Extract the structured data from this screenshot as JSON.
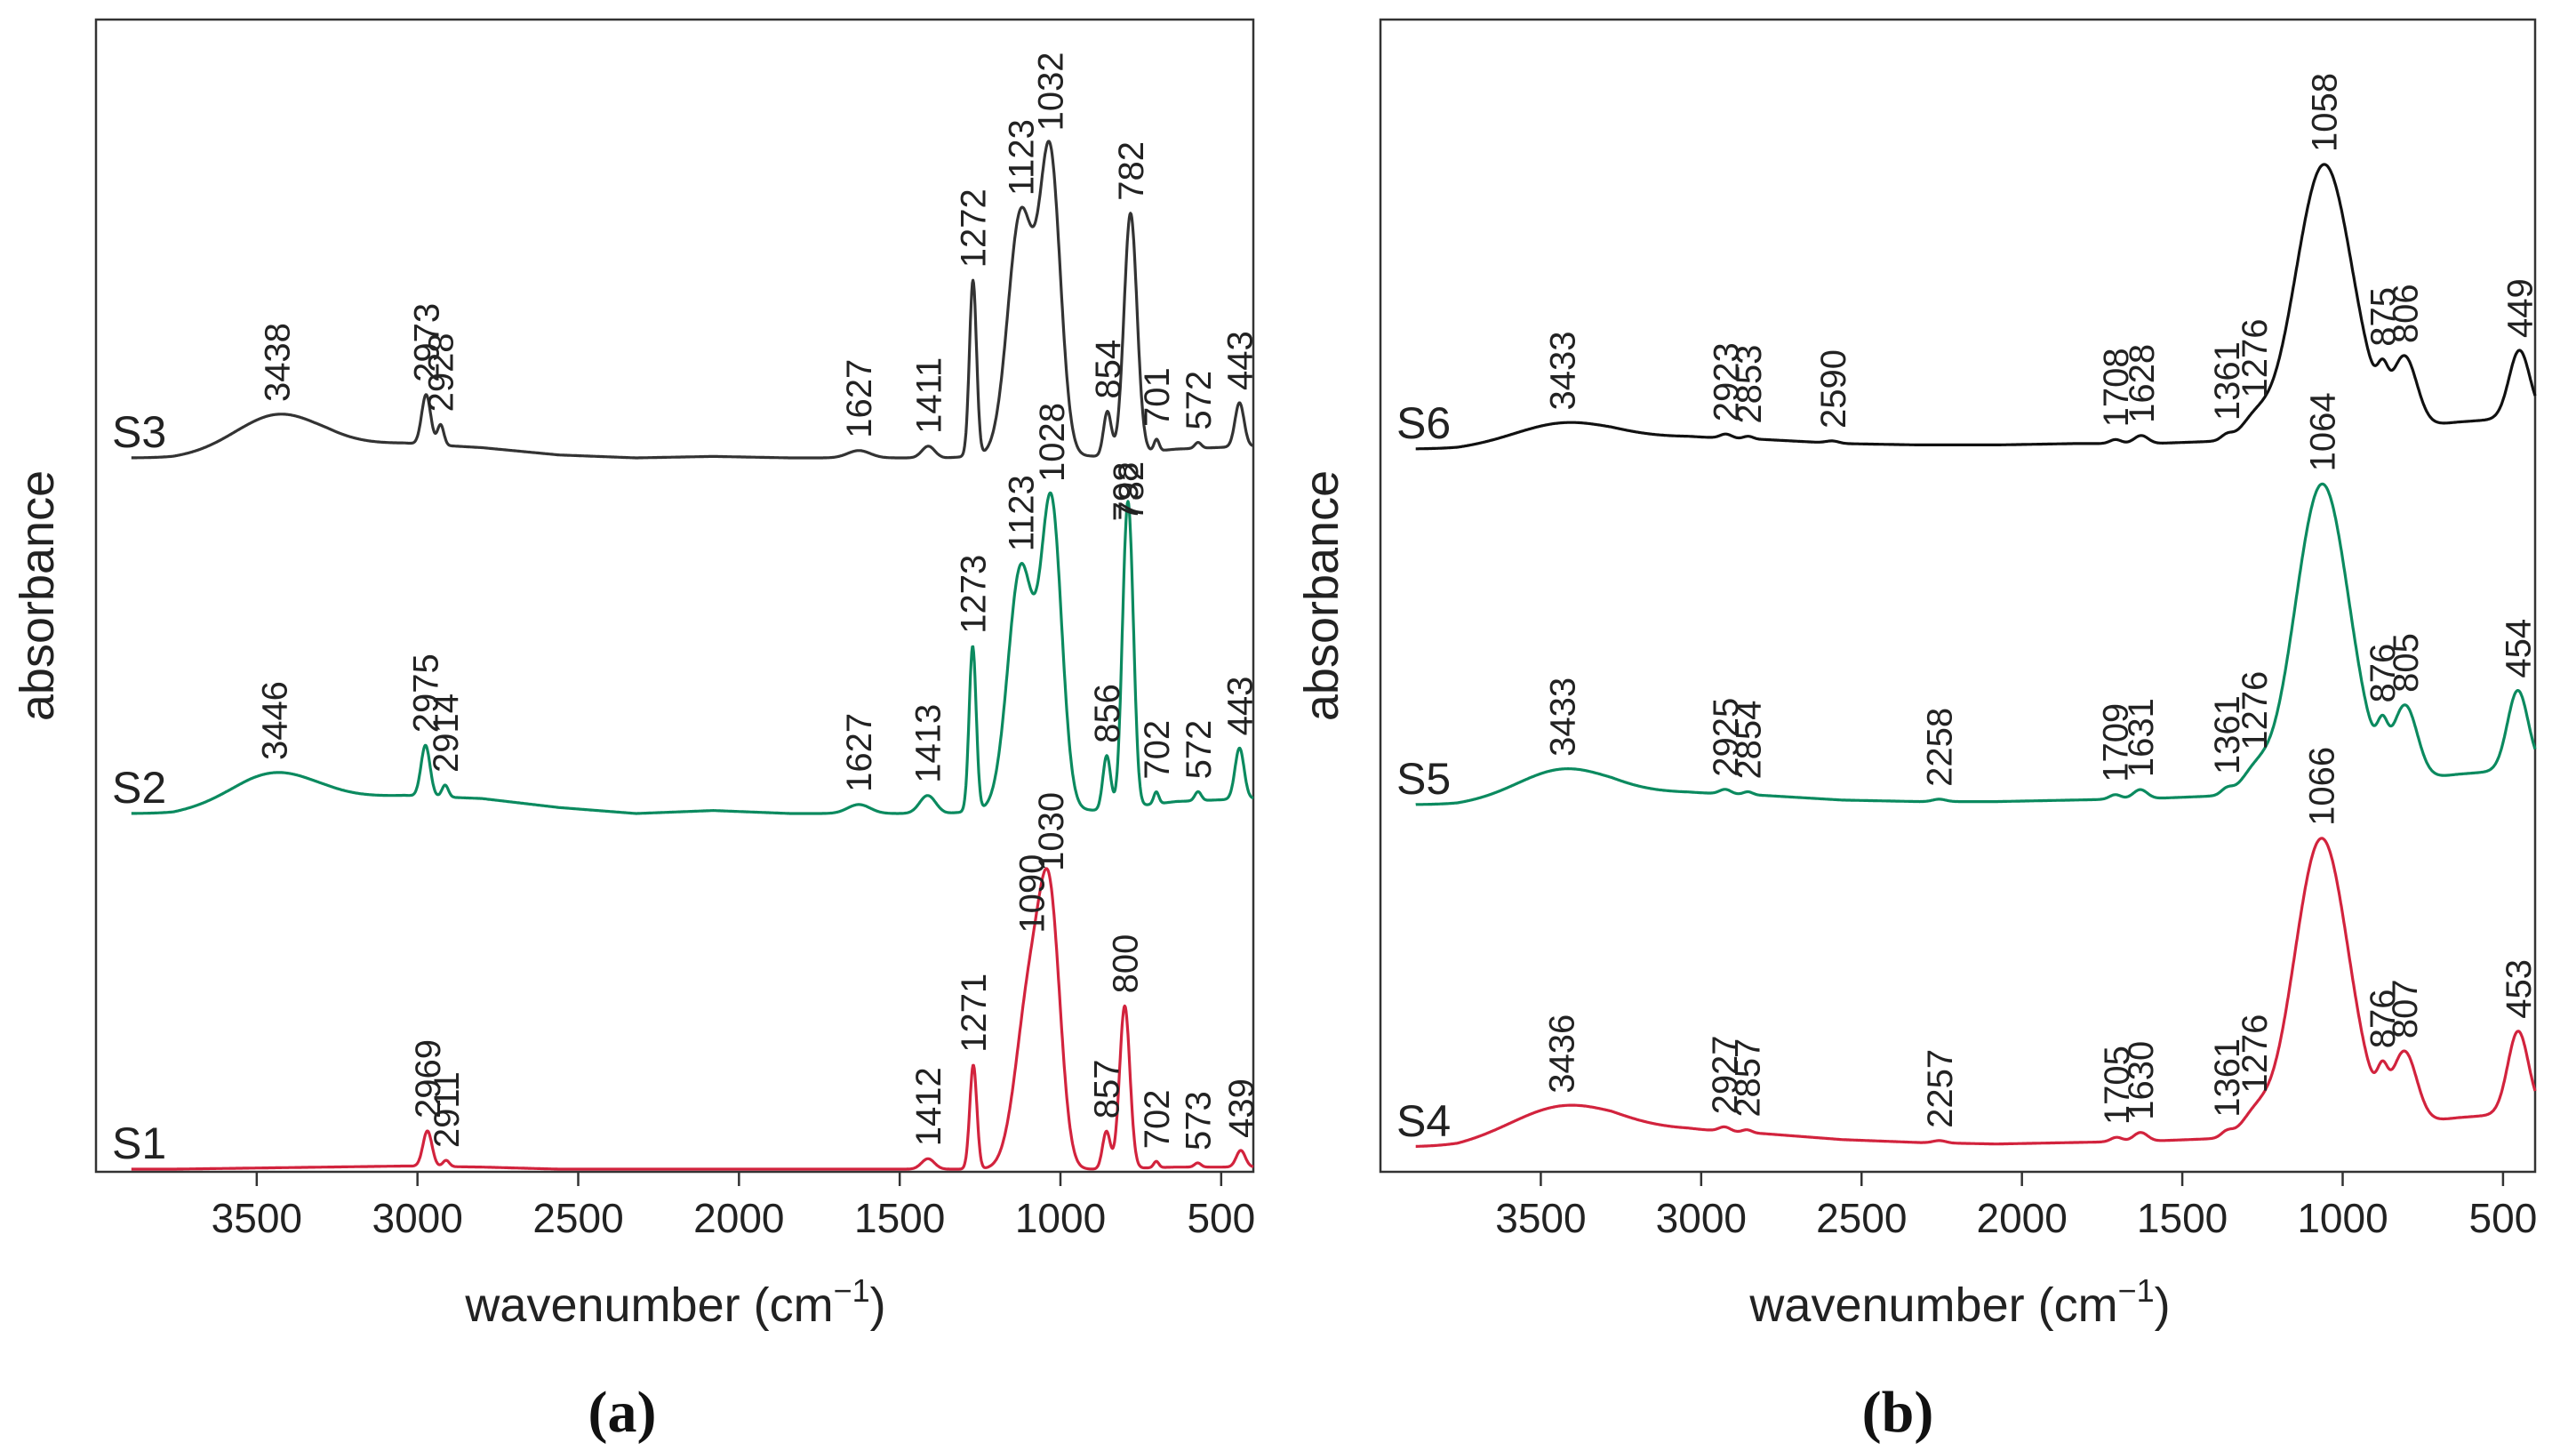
{
  "chart_data": [
    {
      "type": "line",
      "panel_label": "(a)",
      "xlabel": "wavenumber (cm",
      "xlabel_unit_exp": "−1",
      "xlabel_close": ")",
      "ylabel": "absorbance",
      "xlim": [
        4000,
        400
      ],
      "xticks": [
        3500,
        3000,
        2500,
        2000,
        1500,
        1000,
        500
      ],
      "colors": {
        "S3": "#333333",
        "S2": "#0b8a5f",
        "S1": "#d2233d"
      },
      "series": [
        {
          "name": "S3",
          "offset": 0.66,
          "scale": 0.36,
          "baseline": [
            0,
            0,
            0.02,
            0.045,
            0.05,
            0.035,
            0.01,
            0,
            0.005,
            0,
            0,
            0,
            0.015,
            0.005,
            0.03,
            0.04
          ],
          "peaks": [
            {
              "x": 3438,
              "h": 0.12,
              "w": 130
            },
            {
              "x": 2973,
              "h": 0.17,
              "w": 14
            },
            {
              "x": 2928,
              "h": 0.07,
              "w": 10
            },
            {
              "x": 1627,
              "h": 0.025,
              "w": 35
            },
            {
              "x": 1411,
              "h": 0.04,
              "w": 20
            },
            {
              "x": 1272,
              "h": 0.6,
              "w": 11
            },
            {
              "x": 1123,
              "h": 0.82,
              "w": 40
            },
            {
              "x": 1032,
              "h": 1.0,
              "w": 32
            },
            {
              "x": 854,
              "h": 0.15,
              "w": 12
            },
            {
              "x": 782,
              "h": 0.82,
              "w": 20
            },
            {
              "x": 701,
              "h": 0.04,
              "w": 8
            },
            {
              "x": 572,
              "h": 0.02,
              "w": 10
            },
            {
              "x": 443,
              "h": 0.15,
              "w": 14
            }
          ],
          "labels": [
            3438,
            2973,
            2928,
            1627,
            1411,
            1272,
            1123,
            1032,
            854,
            782,
            701,
            572,
            443
          ]
        },
        {
          "name": "S2",
          "offset": 0.355,
          "scale": 0.36,
          "baseline": [
            0,
            0,
            0.03,
            0.05,
            0.06,
            0.05,
            0.02,
            0,
            0.01,
            0,
            0,
            0,
            0.02,
            0.01,
            0.04,
            0.05
          ],
          "peaks": [
            {
              "x": 3446,
              "h": 0.1,
              "w": 130
            },
            {
              "x": 2975,
              "h": 0.17,
              "w": 14
            },
            {
              "x": 2914,
              "h": 0.04,
              "w": 10
            },
            {
              "x": 1627,
              "h": 0.03,
              "w": 35
            },
            {
              "x": 1413,
              "h": 0.06,
              "w": 25
            },
            {
              "x": 1273,
              "h": 0.55,
              "w": 11
            },
            {
              "x": 1123,
              "h": 0.8,
              "w": 40
            },
            {
              "x": 1028,
              "h": 1.0,
              "w": 32
            },
            {
              "x": 856,
              "h": 0.18,
              "w": 12
            },
            {
              "x": 798,
              "h": 0.6,
              "w": 14
            },
            {
              "x": 782,
              "h": 0.6,
              "w": 14
            },
            {
              "x": 702,
              "h": 0.04,
              "w": 8
            },
            {
              "x": 572,
              "h": 0.03,
              "w": 10
            },
            {
              "x": 443,
              "h": 0.17,
              "w": 14
            }
          ],
          "labels": [
            3446,
            2975,
            2914,
            1627,
            1413,
            1273,
            1123,
            1028,
            856,
            798,
            782,
            702,
            572,
            443
          ]
        },
        {
          "name": "S1",
          "offset": 0.0,
          "scale": 0.45,
          "baseline": [
            0,
            0,
            0.005,
            0.01,
            0.015,
            0.01,
            0,
            0,
            0,
            0,
            0,
            0,
            0,
            0,
            0.01,
            0.01
          ],
          "peaks": [
            {
              "x": 2969,
              "h": 0.17,
              "w": 14
            },
            {
              "x": 2911,
              "h": 0.03,
              "w": 10
            },
            {
              "x": 1412,
              "h": 0.05,
              "w": 20
            },
            {
              "x": 1271,
              "h": 0.5,
              "w": 11
            },
            {
              "x": 1090,
              "h": 0.9,
              "w": 45
            },
            {
              "x": 1030,
              "h": 1.0,
              "w": 32
            },
            {
              "x": 857,
              "h": 0.18,
              "w": 12
            },
            {
              "x": 800,
              "h": 0.78,
              "w": 16
            },
            {
              "x": 702,
              "h": 0.03,
              "w": 8
            },
            {
              "x": 573,
              "h": 0.02,
              "w": 10
            },
            {
              "x": 439,
              "h": 0.08,
              "w": 14
            }
          ],
          "labels": [
            2969,
            2911,
            1412,
            1271,
            1090,
            1030,
            857,
            800,
            702,
            573,
            439
          ]
        }
      ]
    },
    {
      "type": "line",
      "panel_label": "(b)",
      "xlabel": "wavenumber (cm",
      "xlabel_unit_exp": "−1",
      "xlabel_close": ")",
      "ylabel": "absorbance",
      "xlim": [
        4000,
        400
      ],
      "xticks": [
        3500,
        3000,
        2500,
        2000,
        1500,
        1000,
        500
      ],
      "colors": {
        "S6": "#111111",
        "S5": "#0b8a5f",
        "S4": "#d2233d"
      },
      "series": [
        {
          "name": "S6",
          "offset": 0.63,
          "scale": 0.33,
          "baseline": [
            0,
            0,
            0.02,
            0.04,
            0.045,
            0.035,
            0.02,
            0.015,
            0.015,
            0.02,
            0.02,
            0.03,
            0.05,
            0.07,
            0.1,
            0.12
          ],
          "peaks": [
            {
              "x": 3433,
              "h": 0.07,
              "w": 150
            },
            {
              "x": 2923,
              "h": 0.015,
              "w": 18
            },
            {
              "x": 2853,
              "h": 0.01,
              "w": 15
            },
            {
              "x": 2590,
              "h": 0.008,
              "w": 20
            },
            {
              "x": 1708,
              "h": 0.015,
              "w": 18
            },
            {
              "x": 1628,
              "h": 0.03,
              "w": 22
            },
            {
              "x": 1361,
              "h": 0.02,
              "w": 18
            },
            {
              "x": 1276,
              "h": 0.06,
              "w": 40
            },
            {
              "x": 1058,
              "h": 1.0,
              "w": 88
            },
            {
              "x": 875,
              "h": 0.1,
              "w": 16
            },
            {
              "x": 806,
              "h": 0.25,
              "w": 38
            },
            {
              "x": 449,
              "h": 0.25,
              "w": 32
            }
          ],
          "labels": [
            3433,
            2923,
            2853,
            2590,
            1708,
            1628,
            1361,
            1276,
            1058,
            875,
            806,
            449
          ]
        },
        {
          "name": "S5",
          "offset": 0.34,
          "scale": 0.35,
          "baseline": [
            0,
            0,
            0.02,
            0.04,
            0.04,
            0.03,
            0.015,
            0.01,
            0.01,
            0.015,
            0.02,
            0.03,
            0.05,
            0.07,
            0.1,
            0.12
          ],
          "peaks": [
            {
              "x": 3433,
              "h": 0.09,
              "w": 140
            },
            {
              "x": 2925,
              "h": 0.015,
              "w": 18
            },
            {
              "x": 2854,
              "h": 0.01,
              "w": 15
            },
            {
              "x": 2258,
              "h": 0.008,
              "w": 20
            },
            {
              "x": 1709,
              "h": 0.015,
              "w": 18
            },
            {
              "x": 1631,
              "h": 0.03,
              "w": 22
            },
            {
              "x": 1361,
              "h": 0.02,
              "w": 18
            },
            {
              "x": 1276,
              "h": 0.06,
              "w": 40
            },
            {
              "x": 1064,
              "h": 1.0,
              "w": 84
            },
            {
              "x": 876,
              "h": 0.1,
              "w": 16
            },
            {
              "x": 805,
              "h": 0.24,
              "w": 38
            },
            {
              "x": 454,
              "h": 0.26,
              "w": 32
            }
          ],
          "labels": [
            3433,
            2925,
            2854,
            2258,
            1709,
            1631,
            1361,
            1276,
            1064,
            876,
            805,
            454
          ]
        },
        {
          "name": "S4",
          "offset": 0.04,
          "scale": 0.38,
          "baseline": [
            0,
            0,
            0.03,
            0.06,
            0.06,
            0.045,
            0.025,
            0.015,
            0.01,
            0.015,
            0.02,
            0.03,
            0.05,
            0.07,
            0.1,
            0.12
          ],
          "peaks": [
            {
              "x": 3436,
              "h": 0.1,
              "w": 160
            },
            {
              "x": 2927,
              "h": 0.015,
              "w": 18
            },
            {
              "x": 2857,
              "h": 0.01,
              "w": 15
            },
            {
              "x": 2257,
              "h": 0.008,
              "w": 20
            },
            {
              "x": 1705,
              "h": 0.015,
              "w": 18
            },
            {
              "x": 1630,
              "h": 0.03,
              "w": 22
            },
            {
              "x": 1361,
              "h": 0.02,
              "w": 18
            },
            {
              "x": 1276,
              "h": 0.06,
              "w": 40
            },
            {
              "x": 1066,
              "h": 1.0,
              "w": 84
            },
            {
              "x": 876,
              "h": 0.1,
              "w": 16
            },
            {
              "x": 807,
              "h": 0.24,
              "w": 38
            },
            {
              "x": 453,
              "h": 0.28,
              "w": 32
            }
          ],
          "labels": [
            3436,
            2927,
            2857,
            2257,
            1705,
            1630,
            1361,
            1276,
            1066,
            876,
            807,
            453
          ]
        }
      ]
    }
  ]
}
